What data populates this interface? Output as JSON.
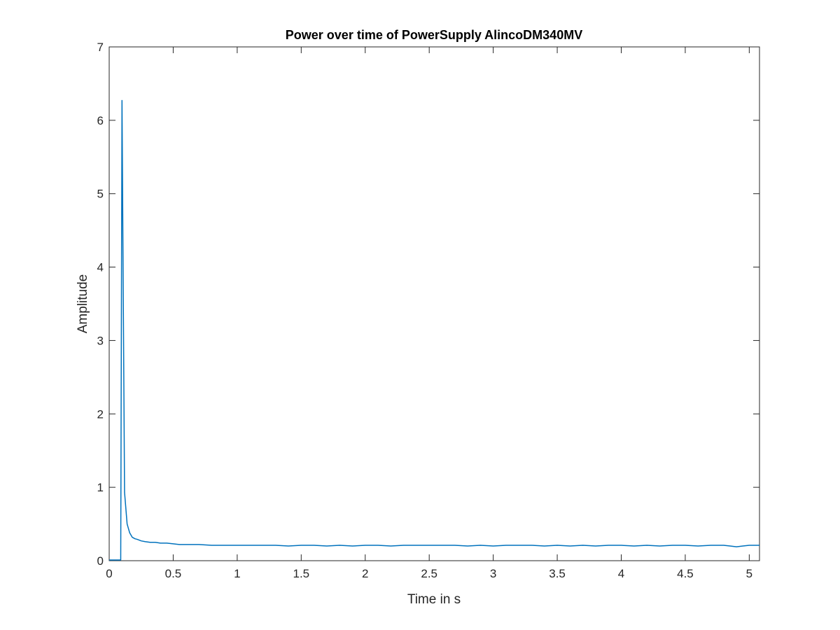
{
  "chart_data": {
    "type": "line",
    "title": "Power over time of PowerSupply AlincoDM340MV",
    "xlabel": "Time in s",
    "ylabel": "Amplitude",
    "xlim": [
      0,
      5.08
    ],
    "ylim": [
      0,
      7
    ],
    "xticks": [
      0,
      0.5,
      1,
      1.5,
      2,
      2.5,
      3,
      3.5,
      4,
      4.5,
      5
    ],
    "xtick_labels": [
      "0",
      "0.5",
      "1",
      "1.5",
      "2",
      "2.5",
      "3",
      "3.5",
      "4",
      "4.5",
      "5"
    ],
    "yticks": [
      0,
      1,
      2,
      3,
      4,
      5,
      6,
      7
    ],
    "ytick_labels": [
      "0",
      "1",
      "2",
      "3",
      "4",
      "5",
      "6",
      "7"
    ],
    "grid": false,
    "box": true,
    "line_color": "#0072BD",
    "series": [
      {
        "x": [
          0,
          0.09,
          0.1,
          0.12,
          0.14,
          0.16,
          0.18,
          0.2,
          0.22,
          0.25,
          0.28,
          0.32,
          0.36,
          0.4,
          0.45,
          0.5,
          0.55,
          0.6,
          0.65,
          0.7,
          0.8,
          0.9,
          1.0,
          1.1,
          1.2,
          1.3,
          1.4,
          1.5,
          1.6,
          1.7,
          1.8,
          1.9,
          2.0,
          2.1,
          2.2,
          2.3,
          2.4,
          2.5,
          2.6,
          2.7,
          2.8,
          2.9,
          3.0,
          3.1,
          3.2,
          3.3,
          3.4,
          3.5,
          3.6,
          3.7,
          3.8,
          3.9,
          4.0,
          4.1,
          4.2,
          4.3,
          4.4,
          4.5,
          4.6,
          4.7,
          4.8,
          4.85,
          4.9,
          4.95,
          5.0,
          5.08
        ],
        "y": [
          0.01,
          0.01,
          6.27,
          0.93,
          0.5,
          0.38,
          0.32,
          0.3,
          0.29,
          0.27,
          0.26,
          0.25,
          0.25,
          0.24,
          0.24,
          0.23,
          0.22,
          0.22,
          0.22,
          0.22,
          0.21,
          0.21,
          0.21,
          0.21,
          0.21,
          0.21,
          0.2,
          0.21,
          0.21,
          0.2,
          0.21,
          0.2,
          0.21,
          0.21,
          0.2,
          0.21,
          0.21,
          0.21,
          0.21,
          0.21,
          0.2,
          0.21,
          0.2,
          0.21,
          0.21,
          0.21,
          0.2,
          0.21,
          0.2,
          0.21,
          0.2,
          0.21,
          0.21,
          0.2,
          0.21,
          0.2,
          0.21,
          0.21,
          0.2,
          0.21,
          0.21,
          0.2,
          0.19,
          0.2,
          0.21,
          0.21
        ]
      }
    ]
  }
}
